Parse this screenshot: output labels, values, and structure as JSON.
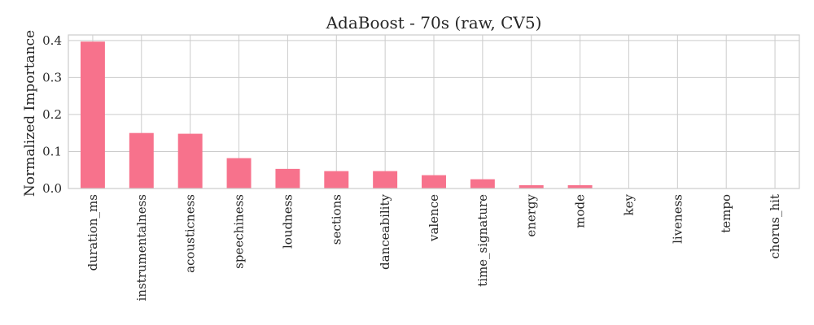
{
  "chart_data": {
    "type": "bar",
    "title": "AdaBoost - 70s (raw, CV5)",
    "xlabel": "",
    "ylabel": "Normalized Importance",
    "categories": [
      "duration_ms",
      "instrumentalness",
      "acousticness",
      "speechiness",
      "loudness",
      "sections",
      "danceability",
      "valence",
      "time_signature",
      "energy",
      "mode",
      "key",
      "liveness",
      "tempo",
      "chorus_hit"
    ],
    "values": [
      0.397,
      0.15,
      0.148,
      0.082,
      0.053,
      0.047,
      0.047,
      0.036,
      0.025,
      0.009,
      0.009,
      0.0,
      0.0,
      0.0,
      0.0
    ],
    "ylim": [
      0,
      0.415
    ],
    "yticks": [
      0.0,
      0.1,
      0.2,
      0.3,
      0.4
    ],
    "ytick_labels": [
      "0.0",
      "0.1",
      "0.2",
      "0.3",
      "0.4"
    ],
    "grid": true,
    "bar_color": "#f7728c"
  }
}
